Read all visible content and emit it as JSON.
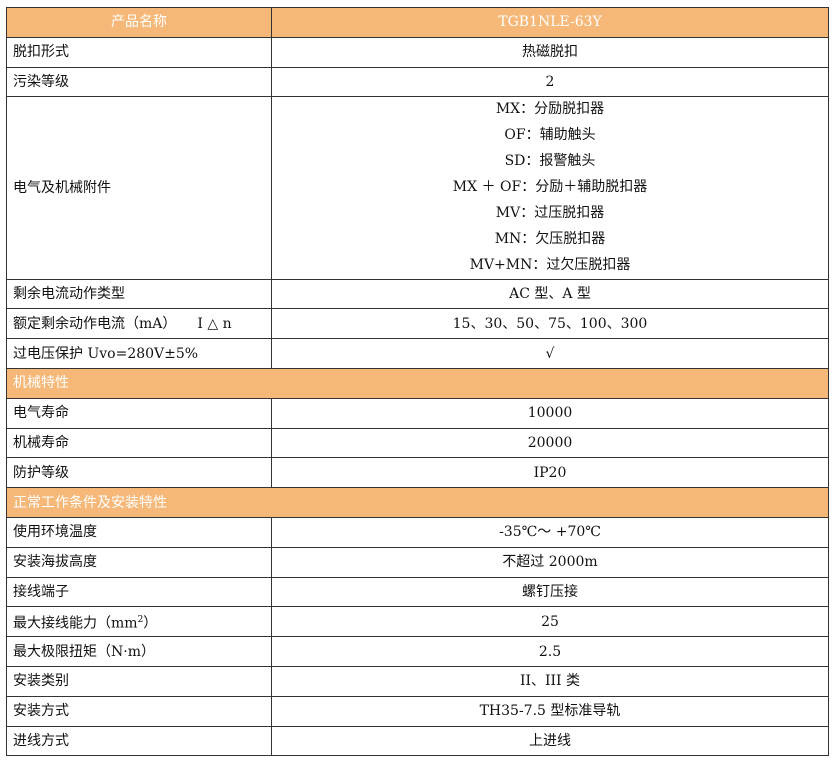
{
  "header": {
    "name_label": "产品名称",
    "model": "TGB1NLE-63Y"
  },
  "colors": {
    "header_bg": "#F5B878",
    "header_text": "#ffffff",
    "border": "#333333"
  },
  "rows1": [
    {
      "label": "脱扣形式",
      "value": "热磁脱扣"
    },
    {
      "label": "污染等级",
      "value": "2"
    }
  ],
  "accessories": {
    "label": "电气及机械附件",
    "values": [
      "MX：分励脱扣器",
      "OF：辅助触头",
      "SD：报警触头",
      "MX ＋ OF：分励＋辅助脱扣器",
      "MV：过压脱扣器",
      "MN：欠压脱扣器",
      "MV+MN：过欠压脱扣器"
    ]
  },
  "rows2": [
    {
      "label": "剩余电流动作类型",
      "value": "AC 型、A 型"
    },
    {
      "label": "额定剩余动作电流（mA）　　I △ n",
      "value": "15、30、50、75、100、300"
    },
    {
      "label": "过电压保护 Uvo=280V±5%",
      "value": "√"
    }
  ],
  "section_mech": "机械特性",
  "rows3": [
    {
      "label": "电气寿命",
      "value": "10000"
    },
    {
      "label": "机械寿命",
      "value": "20000"
    },
    {
      "label": "防护等级",
      "value": "IP20"
    }
  ],
  "section_env": "正常工作条件及安装特性",
  "rows4": [
    {
      "label": "使用环境温度",
      "value": "-35℃～ +70℃"
    },
    {
      "label": "安装海拔高度",
      "value": "不超过 2000m"
    },
    {
      "label": "接线端子",
      "value": "螺钉压接"
    }
  ],
  "wire": {
    "label": "最大接线能力（mm",
    "sup": "2",
    "label_end": "）",
    "value": "25"
  },
  "rows5": [
    {
      "label": "最大极限扭矩（N·m）",
      "value": "2.5"
    },
    {
      "label": "安装类别",
      "value": "II、III 类"
    },
    {
      "label": "安装方式",
      "value": "TH35-7.5 型标准导轨"
    },
    {
      "label": "进线方式",
      "value": "上进线"
    }
  ]
}
